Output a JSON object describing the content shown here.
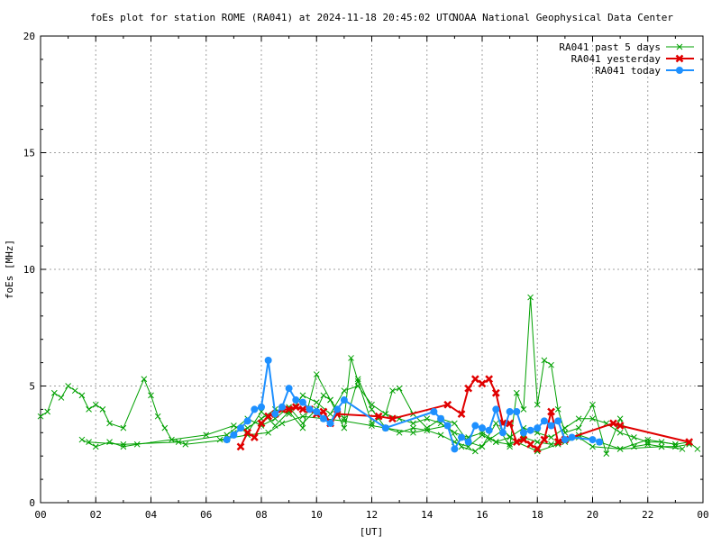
{
  "chart_data": {
    "type": "line",
    "title": "foEs plot for station ROME (RA041) at 2024-11-18 20:45:02 UTC",
    "subtitle": "NOAA National Geophysical Data Center",
    "xlabel": "[UT]",
    "ylabel": "foEs [MHz]",
    "xlim": [
      0,
      24
    ],
    "ylim": [
      0,
      20
    ],
    "x_ticks": [
      "00",
      "02",
      "04",
      "06",
      "08",
      "10",
      "12",
      "14",
      "16",
      "18",
      "20",
      "22",
      "00"
    ],
    "y_ticks": [
      "0",
      "5",
      "10",
      "15",
      "20"
    ],
    "grid": true,
    "legend_position": "top-right",
    "series": [
      {
        "name": "RA041 past 5 days",
        "color": "#00a000",
        "marker": "x",
        "segments": [
          [
            [
              0.0,
              3.7
            ],
            [
              0.25,
              3.9
            ],
            [
              0.5,
              4.7
            ],
            [
              0.75,
              4.5
            ],
            [
              1.0,
              5.0
            ],
            [
              1.25,
              4.8
            ],
            [
              1.5,
              4.6
            ],
            [
              1.75,
              4.0
            ],
            [
              2.0,
              4.2
            ],
            [
              2.25,
              4.0
            ],
            [
              2.5,
              3.4
            ],
            [
              3.0,
              3.2
            ],
            [
              3.75,
              5.3
            ],
            [
              4.0,
              4.6
            ],
            [
              4.25,
              3.7
            ],
            [
              4.5,
              3.2
            ],
            [
              4.75,
              2.7
            ],
            [
              5.25,
              2.5
            ],
            [
              6.75,
              2.7
            ],
            [
              7.0,
              3.0
            ],
            [
              7.5,
              3.2
            ],
            [
              8.0,
              3.6
            ],
            [
              8.5,
              4.0
            ],
            [
              9.0,
              3.8
            ],
            [
              9.5,
              4.6
            ],
            [
              10.0,
              4.3
            ],
            [
              10.5,
              3.8
            ],
            [
              11.0,
              4.8
            ],
            [
              11.5,
              5.0
            ],
            [
              12.0,
              4.2
            ],
            [
              12.5,
              3.8
            ],
            [
              13.0,
              3.6
            ],
            [
              13.5,
              3.4
            ],
            [
              14.0,
              3.6
            ],
            [
              14.5,
              3.4
            ],
            [
              15.0,
              3.0
            ],
            [
              15.5,
              2.8
            ],
            [
              16.0,
              3.0
            ],
            [
              16.5,
              2.6
            ],
            [
              17.0,
              2.8
            ],
            [
              17.5,
              3.2
            ],
            [
              18.0,
              3.0
            ],
            [
              18.5,
              2.8
            ],
            [
              19.0,
              3.2
            ],
            [
              19.5,
              3.6
            ],
            [
              20.0,
              3.6
            ],
            [
              20.5,
              3.4
            ],
            [
              21.0,
              3.0
            ],
            [
              21.5,
              2.8
            ],
            [
              22.0,
              2.6
            ],
            [
              22.5,
              2.6
            ],
            [
              23.0,
              2.5
            ],
            [
              23.5,
              2.6
            ],
            [
              23.8,
              2.3
            ]
          ],
          [
            [
              1.5,
              2.7
            ],
            [
              2.0,
              2.4
            ],
            [
              2.5,
              2.6
            ],
            [
              3.0,
              2.4
            ],
            [
              3.5,
              2.5
            ],
            [
              6.0,
              2.9
            ],
            [
              7.0,
              3.3
            ],
            [
              7.5,
              3.0
            ],
            [
              8.0,
              3.9
            ],
            [
              8.5,
              3.3
            ],
            [
              9.0,
              3.9
            ],
            [
              9.5,
              3.2
            ],
            [
              10.0,
              5.5
            ],
            [
              10.5,
              4.4
            ],
            [
              11.0,
              3.6
            ],
            [
              11.25,
              6.2
            ],
            [
              11.5,
              5.2
            ],
            [
              12.0,
              3.4
            ],
            [
              12.5,
              3.8
            ],
            [
              12.75,
              4.8
            ],
            [
              13.0,
              4.9
            ],
            [
              13.5,
              3.8
            ],
            [
              14.0,
              3.2
            ],
            [
              14.5,
              3.6
            ],
            [
              15.0,
              3.4
            ],
            [
              15.5,
              2.6
            ],
            [
              16.0,
              2.4
            ],
            [
              16.5,
              3.4
            ],
            [
              17.0,
              2.4
            ],
            [
              17.25,
              4.7
            ],
            [
              17.5,
              4.0
            ],
            [
              17.75,
              8.8
            ],
            [
              18.0,
              4.2
            ],
            [
              18.25,
              6.1
            ],
            [
              18.5,
              5.9
            ],
            [
              18.75,
              4.0
            ],
            [
              19.0,
              3.0
            ],
            [
              19.5,
              3.2
            ],
            [
              20.0,
              4.2
            ],
            [
              20.5,
              2.1
            ],
            [
              21.0,
              3.6
            ],
            [
              21.5,
              2.4
            ],
            [
              22.0,
              2.5
            ],
            [
              22.5,
              2.4
            ],
            [
              23.0,
              2.4
            ],
            [
              23.5,
              2.5
            ]
          ],
          [
            [
              1.75,
              2.6
            ],
            [
              3.0,
              2.5
            ],
            [
              5.0,
              2.6
            ],
            [
              6.75,
              2.9
            ],
            [
              7.5,
              3.6
            ],
            [
              8.0,
              3.3
            ],
            [
              8.5,
              3.6
            ],
            [
              9.0,
              4.1
            ],
            [
              9.5,
              3.4
            ],
            [
              10.0,
              4.0
            ],
            [
              10.25,
              4.6
            ],
            [
              10.5,
              4.4
            ],
            [
              11.0,
              3.2
            ],
            [
              11.5,
              5.3
            ],
            [
              12.0,
              4.0
            ],
            [
              12.5,
              3.2
            ],
            [
              13.0,
              3.0
            ],
            [
              13.5,
              3.2
            ],
            [
              14.0,
              3.1
            ],
            [
              14.5,
              2.9
            ],
            [
              15.0,
              2.6
            ],
            [
              15.5,
              2.4
            ],
            [
              16.0,
              2.9
            ],
            [
              16.5,
              2.6
            ],
            [
              17.0,
              2.5
            ],
            [
              17.5,
              2.8
            ],
            [
              18.0,
              2.6
            ],
            [
              18.5,
              2.5
            ],
            [
              19.0,
              2.6
            ],
            [
              19.5,
              2.8
            ],
            [
              20.0,
              2.4
            ],
            [
              21.0,
              2.3
            ],
            [
              22.0,
              2.7
            ],
            [
              23.0,
              2.5
            ]
          ],
          [
            [
              6.5,
              2.7
            ],
            [
              7.5,
              2.9
            ],
            [
              8.25,
              3.0
            ],
            [
              8.75,
              3.4
            ],
            [
              9.5,
              3.7
            ],
            [
              10.25,
              3.6
            ],
            [
              11.0,
              3.5
            ],
            [
              12.0,
              3.3
            ],
            [
              13.5,
              3.0
            ],
            [
              14.75,
              3.3
            ],
            [
              15.25,
              2.4
            ],
            [
              15.75,
              2.2
            ],
            [
              16.25,
              2.7
            ],
            [
              16.75,
              3.1
            ],
            [
              17.25,
              2.6
            ],
            [
              18.0,
              2.2
            ],
            [
              18.75,
              2.5
            ],
            [
              19.5,
              2.9
            ],
            [
              20.25,
              2.6
            ],
            [
              21.0,
              2.3
            ],
            [
              22.5,
              2.4
            ],
            [
              23.25,
              2.3
            ]
          ]
        ]
      },
      {
        "name": "RA041 yesterday",
        "color": "#e00000",
        "marker": "x-bold",
        "points": [
          [
            7.25,
            2.4
          ],
          [
            7.5,
            3.0
          ],
          [
            7.75,
            2.8
          ],
          [
            8.0,
            3.4
          ],
          [
            8.25,
            3.7
          ],
          [
            8.5,
            3.8
          ],
          [
            8.75,
            4.0
          ],
          [
            9.0,
            4.0
          ],
          [
            9.25,
            4.1
          ],
          [
            9.5,
            4.0
          ],
          [
            9.75,
            4.0
          ],
          [
            10.0,
            3.8
          ],
          [
            10.25,
            3.9
          ],
          [
            10.5,
            3.4
          ],
          [
            10.75,
            3.8
          ],
          [
            12.25,
            3.7
          ],
          [
            12.75,
            3.6
          ],
          [
            14.75,
            4.2
          ],
          [
            15.25,
            3.8
          ],
          [
            15.5,
            4.9
          ],
          [
            15.75,
            5.3
          ],
          [
            16.0,
            5.1
          ],
          [
            16.25,
            5.3
          ],
          [
            16.5,
            4.7
          ],
          [
            16.75,
            3.4
          ],
          [
            17.0,
            3.4
          ],
          [
            17.25,
            2.6
          ],
          [
            17.5,
            2.7
          ],
          [
            17.75,
            2.5
          ],
          [
            18.0,
            2.3
          ],
          [
            18.25,
            2.7
          ],
          [
            18.5,
            3.9
          ],
          [
            18.75,
            2.6
          ],
          [
            19.0,
            2.7
          ],
          [
            20.75,
            3.4
          ],
          [
            21.0,
            3.3
          ],
          [
            23.5,
            2.6
          ]
        ]
      },
      {
        "name": "RA041 today",
        "color": "#1e90ff",
        "marker": "dot",
        "points": [
          [
            6.75,
            2.7
          ],
          [
            7.0,
            2.9
          ],
          [
            7.25,
            3.2
          ],
          [
            7.5,
            3.5
          ],
          [
            7.75,
            4.0
          ],
          [
            8.0,
            4.1
          ],
          [
            8.25,
            6.1
          ],
          [
            8.5,
            3.8
          ],
          [
            8.75,
            4.1
          ],
          [
            9.0,
            4.9
          ],
          [
            9.25,
            4.4
          ],
          [
            9.5,
            4.3
          ],
          [
            9.75,
            4.0
          ],
          [
            10.0,
            3.9
          ],
          [
            10.25,
            3.6
          ],
          [
            10.5,
            3.4
          ],
          [
            10.75,
            4.0
          ],
          [
            11.0,
            4.4
          ],
          [
            12.5,
            3.2
          ],
          [
            14.25,
            3.9
          ],
          [
            14.5,
            3.6
          ],
          [
            14.75,
            3.3
          ],
          [
            15.0,
            2.3
          ],
          [
            15.25,
            2.8
          ],
          [
            15.5,
            2.6
          ],
          [
            15.75,
            3.3
          ],
          [
            16.0,
            3.2
          ],
          [
            16.25,
            3.1
          ],
          [
            16.5,
            4.0
          ],
          [
            16.75,
            3.0
          ],
          [
            17.0,
            3.9
          ],
          [
            17.25,
            3.9
          ],
          [
            17.5,
            3.0
          ],
          [
            17.75,
            3.1
          ],
          [
            18.0,
            3.2
          ],
          [
            18.25,
            3.5
          ],
          [
            18.5,
            3.3
          ],
          [
            18.75,
            3.5
          ],
          [
            19.0,
            2.7
          ],
          [
            19.25,
            2.8
          ],
          [
            20.0,
            2.7
          ],
          [
            20.25,
            2.6
          ]
        ]
      }
    ]
  }
}
